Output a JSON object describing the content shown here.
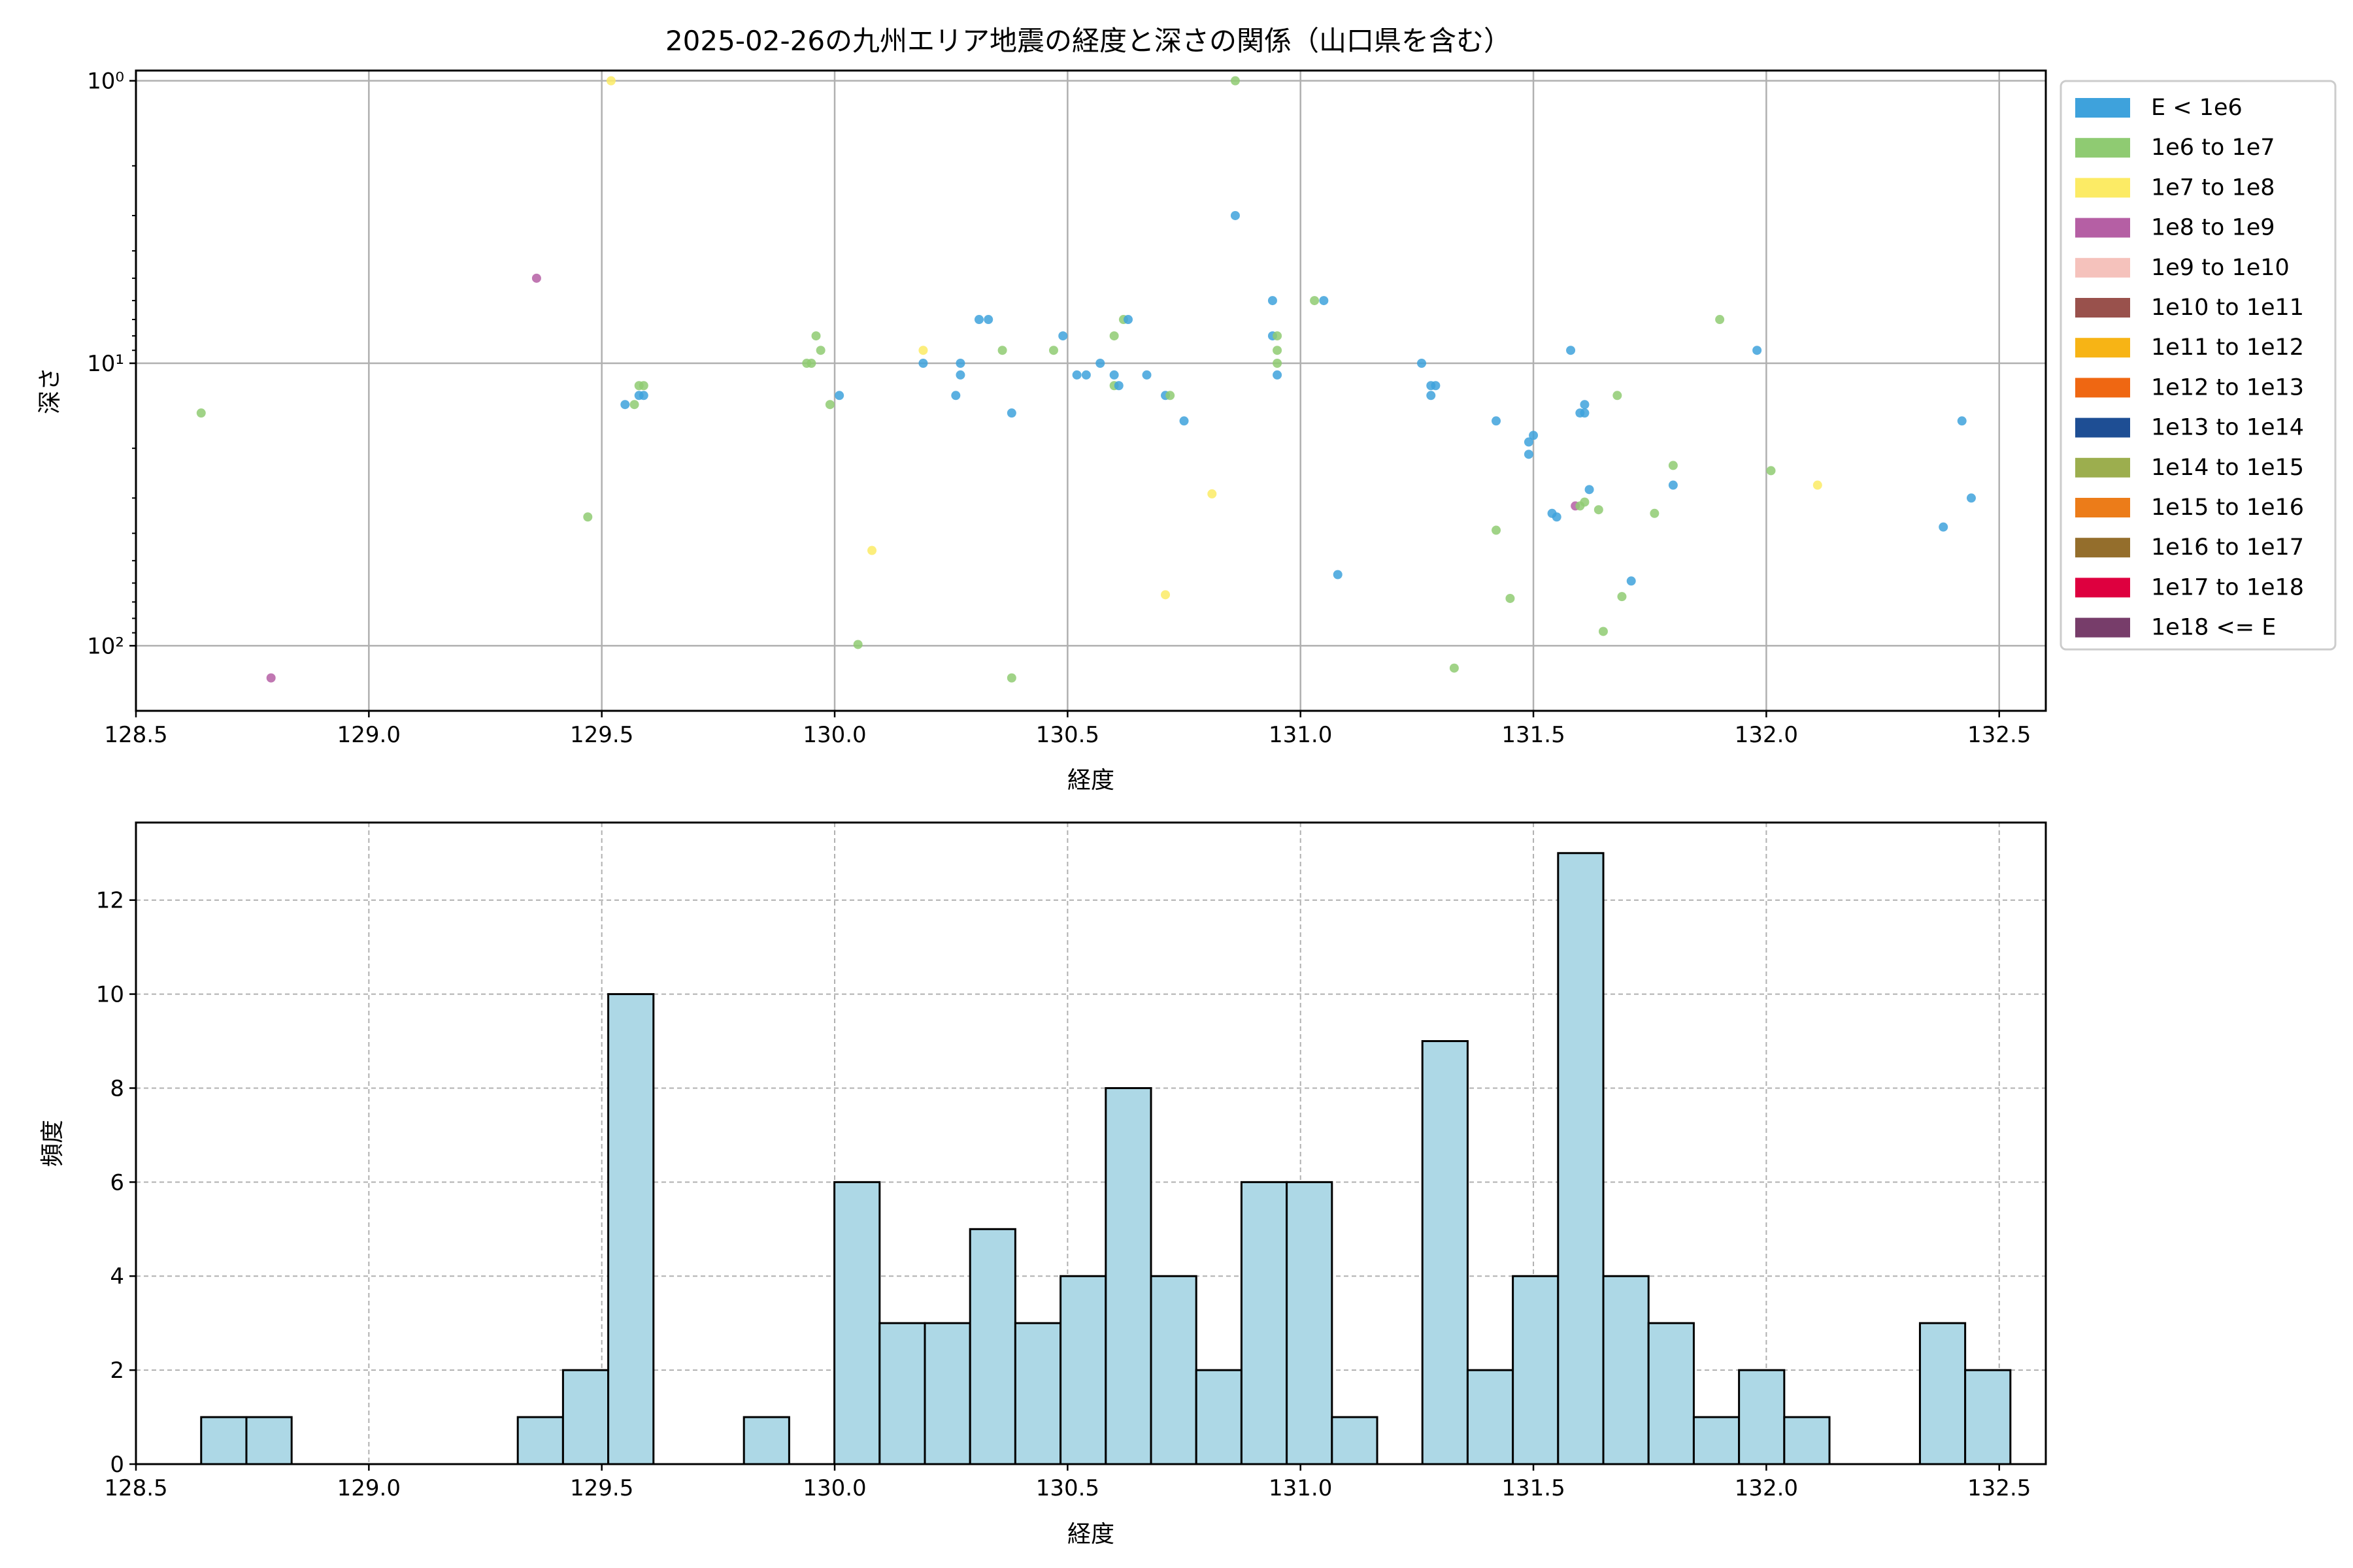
{
  "chart_data": [
    {
      "type": "scatter",
      "title": "2025-02-26の九州エリア地震の経度と深さの関係（山口県を含む）",
      "xlabel": "経度",
      "ylabel": "深さ",
      "xlim": [
        128.5,
        132.6
      ],
      "xticks": [
        128.5,
        129.0,
        129.5,
        130.0,
        130.5,
        131.0,
        131.5,
        132.0,
        132.5
      ],
      "xtick_labels": [
        "128.5",
        "129.0",
        "129.5",
        "130.0",
        "130.5",
        "131.0",
        "131.5",
        "132.0",
        "132.5"
      ],
      "y_scale": "log",
      "y_inverted": true,
      "ylim": [
        0.92,
        170
      ],
      "yticks": [
        1,
        10,
        100
      ],
      "ytick_labels": [
        "10⁰",
        "10¹",
        "10²"
      ],
      "grid": true,
      "legend_placement": "outside-right-top",
      "legend": [
        {
          "label": "E < 1e6",
          "color": "#3EA2DC"
        },
        {
          "label": "1e6 to 1e7",
          "color": "#8FCB72"
        },
        {
          "label": "1e7 to 1e8",
          "color": "#FCEB65"
        },
        {
          "label": "1e8 to 1e9",
          "color": "#B55FA4"
        },
        {
          "label": "1e9 to 1e10",
          "color": "#F5C2BC"
        },
        {
          "label": "1e10 to 1e11",
          "color": "#99514C"
        },
        {
          "label": "1e11 to 1e12",
          "color": "#F7B415"
        },
        {
          "label": "1e12 to 1e13",
          "color": "#EF6712"
        },
        {
          "label": "1e13 to 1e14",
          "color": "#1E4E94"
        },
        {
          "label": "1e14 to 1e15",
          "color": "#9CAE4E"
        },
        {
          "label": "1e15 to 1e16",
          "color": "#EC7C19"
        },
        {
          "label": "1e16 to 1e17",
          "color": "#946E2C"
        },
        {
          "label": "1e17 to 1e18",
          "color": "#DE003F"
        },
        {
          "label": "1e18 <= E",
          "color": "#773D6A"
        }
      ],
      "points": [
        {
          "x": 128.64,
          "y": 15,
          "c": 1
        },
        {
          "x": 128.79,
          "y": 130,
          "c": 3
        },
        {
          "x": 129.36,
          "y": 5,
          "c": 3
        },
        {
          "x": 129.47,
          "y": 35,
          "c": 1
        },
        {
          "x": 129.52,
          "y": 1,
          "c": 2
        },
        {
          "x": 129.55,
          "y": 14,
          "c": 0
        },
        {
          "x": 129.57,
          "y": 14,
          "c": 1
        },
        {
          "x": 129.58,
          "y": 12,
          "c": 1
        },
        {
          "x": 129.58,
          "y": 13,
          "c": 0
        },
        {
          "x": 129.59,
          "y": 12,
          "c": 1
        },
        {
          "x": 129.59,
          "y": 13,
          "c": 0
        },
        {
          "x": 129.94,
          "y": 10,
          "c": 1
        },
        {
          "x": 129.95,
          "y": 10,
          "c": 1
        },
        {
          "x": 129.96,
          "y": 8,
          "c": 1
        },
        {
          "x": 129.97,
          "y": 9,
          "c": 1
        },
        {
          "x": 129.99,
          "y": 14,
          "c": 1
        },
        {
          "x": 130.01,
          "y": 13,
          "c": 0
        },
        {
          "x": 130.05,
          "y": 99,
          "c": 1
        },
        {
          "x": 130.08,
          "y": 46,
          "c": 2
        },
        {
          "x": 130.19,
          "y": 9,
          "c": 2
        },
        {
          "x": 130.19,
          "y": 10,
          "c": 0
        },
        {
          "x": 130.26,
          "y": 13,
          "c": 0
        },
        {
          "x": 130.27,
          "y": 10,
          "c": 0
        },
        {
          "x": 130.27,
          "y": 11,
          "c": 0
        },
        {
          "x": 130.31,
          "y": 7,
          "c": 0
        },
        {
          "x": 130.33,
          "y": 7,
          "c": 0
        },
        {
          "x": 130.36,
          "y": 9,
          "c": 1
        },
        {
          "x": 130.38,
          "y": 15,
          "c": 0
        },
        {
          "x": 130.38,
          "y": 130,
          "c": 1
        },
        {
          "x": 130.47,
          "y": 9,
          "c": 1
        },
        {
          "x": 130.49,
          "y": 8,
          "c": 0
        },
        {
          "x": 130.52,
          "y": 11,
          "c": 0
        },
        {
          "x": 130.54,
          "y": 11,
          "c": 0
        },
        {
          "x": 130.57,
          "y": 10,
          "c": 0
        },
        {
          "x": 130.6,
          "y": 8,
          "c": 1
        },
        {
          "x": 130.6,
          "y": 11,
          "c": 0
        },
        {
          "x": 130.6,
          "y": 12,
          "c": 1
        },
        {
          "x": 130.61,
          "y": 12,
          "c": 0
        },
        {
          "x": 130.62,
          "y": 7,
          "c": 1
        },
        {
          "x": 130.63,
          "y": 7,
          "c": 0
        },
        {
          "x": 130.67,
          "y": 11,
          "c": 0
        },
        {
          "x": 130.71,
          "y": 13,
          "c": 0
        },
        {
          "x": 130.71,
          "y": 66,
          "c": 2
        },
        {
          "x": 130.72,
          "y": 13,
          "c": 1
        },
        {
          "x": 130.75,
          "y": 16,
          "c": 0
        },
        {
          "x": 130.81,
          "y": 29,
          "c": 2
        },
        {
          "x": 130.86,
          "y": 1,
          "c": 1
        },
        {
          "x": 130.86,
          "y": 3,
          "c": 0
        },
        {
          "x": 130.94,
          "y": 6,
          "c": 0
        },
        {
          "x": 130.94,
          "y": 8,
          "c": 0
        },
        {
          "x": 130.95,
          "y": 8,
          "c": 1
        },
        {
          "x": 130.95,
          "y": 9,
          "c": 1
        },
        {
          "x": 130.95,
          "y": 10,
          "c": 1
        },
        {
          "x": 130.95,
          "y": 11,
          "c": 0
        },
        {
          "x": 131.03,
          "y": 6,
          "c": 1
        },
        {
          "x": 131.05,
          "y": 6,
          "c": 0
        },
        {
          "x": 131.08,
          "y": 56,
          "c": 0
        },
        {
          "x": 131.26,
          "y": 10,
          "c": 0
        },
        {
          "x": 131.28,
          "y": 12,
          "c": 0
        },
        {
          "x": 131.28,
          "y": 13,
          "c": 0
        },
        {
          "x": 131.29,
          "y": 12,
          "c": 0
        },
        {
          "x": 131.33,
          "y": 120,
          "c": 1
        },
        {
          "x": 131.42,
          "y": 16,
          "c": 0
        },
        {
          "x": 131.42,
          "y": 39,
          "c": 1
        },
        {
          "x": 131.45,
          "y": 68,
          "c": 1
        },
        {
          "x": 131.49,
          "y": 19,
          "c": 0
        },
        {
          "x": 131.49,
          "y": 21,
          "c": 0
        },
        {
          "x": 131.5,
          "y": 18,
          "c": 0
        },
        {
          "x": 131.54,
          "y": 34,
          "c": 0
        },
        {
          "x": 131.55,
          "y": 35,
          "c": 0
        },
        {
          "x": 131.58,
          "y": 9,
          "c": 0
        },
        {
          "x": 131.59,
          "y": 32,
          "c": 3
        },
        {
          "x": 131.6,
          "y": 15,
          "c": 0
        },
        {
          "x": 131.6,
          "y": 32,
          "c": 1
        },
        {
          "x": 131.61,
          "y": 14,
          "c": 0
        },
        {
          "x": 131.61,
          "y": 15,
          "c": 0
        },
        {
          "x": 131.61,
          "y": 31,
          "c": 1
        },
        {
          "x": 131.62,
          "y": 28,
          "c": 0
        },
        {
          "x": 131.64,
          "y": 33,
          "c": 1
        },
        {
          "x": 131.65,
          "y": 89,
          "c": 1
        },
        {
          "x": 131.68,
          "y": 13,
          "c": 1
        },
        {
          "x": 131.69,
          "y": 67,
          "c": 1
        },
        {
          "x": 131.71,
          "y": 59,
          "c": 0
        },
        {
          "x": 131.76,
          "y": 34,
          "c": 1
        },
        {
          "x": 131.8,
          "y": 23,
          "c": 1
        },
        {
          "x": 131.8,
          "y": 27,
          "c": 0
        },
        {
          "x": 131.9,
          "y": 7,
          "c": 1
        },
        {
          "x": 131.98,
          "y": 9,
          "c": 0
        },
        {
          "x": 132.01,
          "y": 24,
          "c": 1
        },
        {
          "x": 132.11,
          "y": 27,
          "c": 2
        },
        {
          "x": 132.38,
          "y": 38,
          "c": 0
        },
        {
          "x": 132.42,
          "y": 16,
          "c": 0
        },
        {
          "x": 132.44,
          "y": 30,
          "c": 0
        }
      ]
    },
    {
      "type": "bar",
      "title": "",
      "xlabel": "経度",
      "ylabel": "頻度",
      "xlim": [
        128.5,
        132.6
      ],
      "ylim": [
        0,
        13.65
      ],
      "xticks": [
        128.5,
        129.0,
        129.5,
        130.0,
        130.5,
        131.0,
        131.5,
        132.0,
        132.5
      ],
      "xtick_labels": [
        "128.5",
        "129.0",
        "129.5",
        "130.0",
        "130.5",
        "131.0",
        "131.5",
        "132.0",
        "132.5"
      ],
      "yticks": [
        0,
        2,
        4,
        6,
        8,
        10,
        12
      ],
      "ytick_labels": [
        "0",
        "2",
        "4",
        "6",
        "8",
        "10",
        "12"
      ],
      "grid": true,
      "bin_start": 128.64,
      "bin_width": 0.0971,
      "values": [
        1,
        1,
        0,
        0,
        0,
        0,
        0,
        1,
        2,
        10,
        0,
        0,
        1,
        0,
        6,
        3,
        3,
        5,
        3,
        4,
        8,
        4,
        2,
        6,
        6,
        1,
        0,
        9,
        2,
        4,
        13,
        4,
        3,
        1,
        2,
        1,
        0,
        0,
        3,
        2
      ],
      "fill_color": "#ADD8E6",
      "edge_color": "#000000"
    }
  ]
}
